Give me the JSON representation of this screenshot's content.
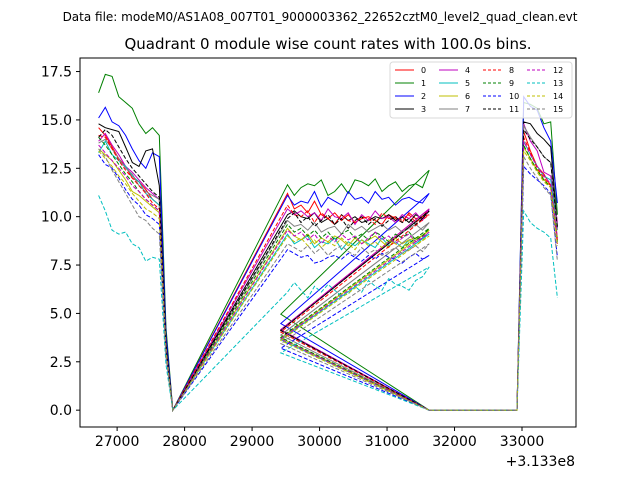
{
  "chart_data": {
    "type": "line",
    "suptitle": "Data file: modeM0/AS1A08_007T01_9000003362_22652cztM0_level2_quad_clean.evt",
    "title": "Quadrant 0 module wise count rates with 100.0s bins.",
    "xlabel": "",
    "ylabel": "",
    "x_offset_label": "+3.133e8",
    "xlim": [
      26450,
      33800
    ],
    "ylim": [
      -0.87,
      18.2
    ],
    "xticks": [
      "27000",
      "28000",
      "29000",
      "30000",
      "31000",
      "32000",
      "33000"
    ],
    "xtick_values": [
      27000,
      28000,
      29000,
      30000,
      31000,
      32000,
      33000
    ],
    "yticks": [
      "0.0",
      "2.5",
      "5.0",
      "7.5",
      "10.0",
      "12.5",
      "15.0",
      "17.5"
    ],
    "ytick_values": [
      0,
      2.5,
      5,
      7.5,
      10,
      12.5,
      15,
      17.5
    ],
    "segments": [
      {
        "start": 26725,
        "n": 10
      },
      {
        "start": 29525,
        "n": 22
      },
      {
        "start": 33025,
        "n": 6
      }
    ],
    "gap_end_times": [
      27725,
      27825,
      29425,
      31625,
      31725,
      32925
    ],
    "series": [
      {
        "name": "0",
        "color": "#ff0000",
        "dash": "solid",
        "values": [
          14.6,
          14.2,
          13.6,
          13.0,
          12.6,
          12.0,
          11.8,
          11.4,
          10.9,
          10.6,
          11.2,
          10.4,
          10.6,
          10.2,
          10.8,
          10.1,
          9.9,
          10.2,
          9.8,
          10.1,
          9.7,
          9.9,
          10.0,
          9.8,
          9.6,
          10.1,
          9.9,
          9.7,
          10.2,
          9.9,
          10.0,
          10.4,
          14.4,
          13.4,
          12.6,
          12.2,
          11.6,
          8.8
        ]
      },
      {
        "name": "1",
        "color": "#008000",
        "dash": "solid",
        "values": [
          16.4,
          17.35,
          17.25,
          16.2,
          15.9,
          15.6,
          14.8,
          14.3,
          14.6,
          14.2,
          11.65,
          11.1,
          11.5,
          11.7,
          11.6,
          11.9,
          11.1,
          11.3,
          11.7,
          11.2,
          11.9,
          11.8,
          11.6,
          11.95,
          11.3,
          11.6,
          11.8,
          11.3,
          11.6,
          11.7,
          11.5,
          12.4,
          15.9,
          15.8,
          15.6,
          14.8,
          14.9,
          10.1
        ]
      },
      {
        "name": "2",
        "color": "#0000ff",
        "dash": "solid",
        "values": [
          15.1,
          15.65,
          14.9,
          14.7,
          14.2,
          13.5,
          12.9,
          12.5,
          13.3,
          13.1,
          11.1,
          10.6,
          10.8,
          10.7,
          11.3,
          10.5,
          11.0,
          10.8,
          10.6,
          11.3,
          10.9,
          11.0,
          10.7,
          11.3,
          10.9,
          11.0,
          10.6,
          10.9,
          11.0,
          10.8,
          10.7,
          11.2,
          16.2,
          15.7,
          15.5,
          14.6,
          13.9,
          10.7
        ]
      },
      {
        "name": "3",
        "color": "#000000",
        "dash": "solid",
        "values": [
          14.8,
          14.6,
          14.5,
          14.4,
          13.6,
          12.8,
          12.6,
          13.4,
          13.5,
          11.6,
          10.1,
          10.3,
          10.0,
          9.9,
          10.2,
          9.7,
          9.9,
          9.6,
          10.1,
          9.8,
          10.0,
          9.7,
          9.8,
          10.0,
          9.9,
          10.1,
          9.8,
          10.0,
          9.7,
          10.1,
          9.9,
          10.3,
          14.9,
          14.8,
          14.3,
          14.0,
          13.6,
          9.5
        ]
      },
      {
        "name": "4",
        "color": "#bf00bf",
        "dash": "solid",
        "values": [
          13.9,
          14.3,
          13.7,
          13.2,
          12.6,
          12.3,
          11.9,
          11.5,
          11.2,
          10.9,
          10.4,
          10.1,
          10.3,
          10.0,
          10.2,
          9.8,
          10.4,
          10.0,
          9.9,
          10.2,
          9.6,
          10.1,
          9.8,
          10.3,
          9.9,
          10.0,
          9.7,
          10.1,
          9.9,
          10.2,
          9.8,
          10.4,
          14.8,
          13.9,
          13.4,
          12.3,
          12.1,
          9.7
        ]
      },
      {
        "name": "5",
        "color": "#00bfbf",
        "dash": "solid",
        "values": [
          13.3,
          13.9,
          13.2,
          12.9,
          12.6,
          12.1,
          11.8,
          11.2,
          10.9,
          10.6,
          9.1,
          8.6,
          8.8,
          9.0,
          8.4,
          8.7,
          8.6,
          8.9,
          8.3,
          8.7,
          8.5,
          8.8,
          8.6,
          8.4,
          8.9,
          8.5,
          8.7,
          8.4,
          8.8,
          8.6,
          8.9,
          9.1,
          13.9,
          13.2,
          12.6,
          12.1,
          11.9,
          9.4
        ]
      },
      {
        "name": "6",
        "color": "#bfbf00",
        "dash": "solid",
        "values": [
          13.5,
          13.2,
          12.9,
          12.4,
          11.9,
          11.3,
          11.1,
          10.8,
          10.5,
          10.2,
          9.4,
          9.0,
          8.8,
          9.1,
          8.6,
          8.9,
          8.7,
          9.0,
          8.8,
          8.5,
          8.9,
          8.6,
          8.8,
          9.0,
          8.7,
          8.4,
          8.9,
          8.6,
          8.8,
          8.9,
          9.0,
          9.3,
          13.6,
          13.0,
          12.4,
          11.9,
          11.6,
          8.9
        ]
      },
      {
        "name": "7",
        "color": "#808080",
        "dash": "solid",
        "values": [
          13.8,
          14.0,
          13.5,
          13.0,
          12.5,
          12.2,
          11.6,
          11.3,
          11.1,
          10.9,
          9.8,
          9.5,
          9.6,
          9.3,
          9.7,
          9.2,
          9.4,
          9.5,
          9.1,
          9.6,
          9.3,
          9.5,
          9.2,
          9.4,
          9.6,
          9.3,
          9.5,
          9.2,
          9.4,
          9.6,
          9.3,
          9.7,
          14.7,
          14.1,
          13.6,
          13.1,
          12.8,
          9.3
        ]
      },
      {
        "name": "8",
        "color": "#ff0000",
        "dash": "dashed",
        "values": [
          14.2,
          14.1,
          13.5,
          12.9,
          12.4,
          12.0,
          11.6,
          11.2,
          10.7,
          10.4,
          10.6,
          10.1,
          10.0,
          10.3,
          9.7,
          10.2,
          9.9,
          9.6,
          10.1,
          9.8,
          9.7,
          10.0,
          9.9,
          9.6,
          10.2,
          9.9,
          10.0,
          9.8,
          10.1,
          9.7,
          10.0,
          10.1,
          14.1,
          13.3,
          12.5,
          12.0,
          11.6,
          8.6
        ]
      },
      {
        "name": "9",
        "color": "#008000",
        "dash": "dashed",
        "values": [
          14.1,
          13.7,
          13.2,
          12.7,
          12.2,
          11.8,
          11.3,
          10.9,
          10.6,
          10.3,
          9.6,
          9.2,
          9.4,
          9.0,
          9.3,
          8.9,
          9.2,
          8.8,
          9.1,
          9.3,
          8.9,
          9.1,
          8.8,
          9.2,
          9.0,
          8.7,
          9.1,
          8.9,
          9.2,
          8.8,
          9.0,
          9.4,
          13.7,
          13.0,
          12.4,
          11.9,
          11.5,
          8.7
        ]
      },
      {
        "name": "10",
        "color": "#0000ff",
        "dash": "dashed",
        "values": [
          13.2,
          12.7,
          12.5,
          12.0,
          11.4,
          10.9,
          10.6,
          10.1,
          9.9,
          9.6,
          8.3,
          8.1,
          7.9,
          8.0,
          7.6,
          7.7,
          7.9,
          8.0,
          7.8,
          8.1,
          7.9,
          7.7,
          8.0,
          7.8,
          8.1,
          7.9,
          7.8,
          7.6,
          7.9,
          8.1,
          7.8,
          8.0,
          12.6,
          12.2,
          11.9,
          11.6,
          11.2,
          7.9
        ]
      },
      {
        "name": "11",
        "color": "#000000",
        "dash": "dashed",
        "values": [
          14.1,
          14.5,
          14.2,
          13.6,
          13.0,
          12.5,
          12.1,
          11.7,
          11.3,
          11.0,
          9.9,
          10.2,
          9.7,
          10.0,
          9.5,
          9.8,
          10.1,
          9.6,
          9.9,
          9.4,
          9.8,
          10.0,
          9.6,
          9.9,
          9.5,
          9.8,
          10.0,
          9.7,
          9.9,
          9.6,
          9.9,
          10.3,
          14.5,
          14.0,
          13.6,
          13.1,
          12.8,
          9.4
        ]
      },
      {
        "name": "12",
        "color": "#bf00bf",
        "dash": "dashed",
        "values": [
          13.7,
          13.3,
          12.9,
          12.5,
          12.1,
          11.6,
          11.3,
          10.9,
          10.6,
          10.3,
          9.3,
          9.0,
          9.2,
          8.8,
          9.1,
          8.6,
          9.0,
          8.7,
          9.1,
          8.8,
          9.0,
          8.6,
          8.9,
          9.2,
          8.8,
          9.0,
          8.6,
          8.9,
          9.1,
          8.7,
          8.9,
          9.2,
          13.9,
          13.2,
          12.6,
          12.1,
          11.7,
          8.9
        ]
      },
      {
        "name": "13",
        "color": "#00bfbf",
        "dash": "dashed",
        "values": [
          11.1,
          10.3,
          9.3,
          9.1,
          9.2,
          8.6,
          8.4,
          7.7,
          7.9,
          7.8,
          6.1,
          6.6,
          6.2,
          5.8,
          6.4,
          6.1,
          6.5,
          6.2,
          5.9,
          6.0,
          6.4,
          6.1,
          6.7,
          6.4,
          6.2,
          6.8,
          6.5,
          6.4,
          6.2,
          6.7,
          6.9,
          7.4,
          10.3,
          9.7,
          9.4,
          9.2,
          8.9,
          5.8
        ]
      },
      {
        "name": "14",
        "color": "#bfbf00",
        "dash": "dashed",
        "values": [
          13.4,
          13.0,
          12.6,
          12.1,
          11.7,
          11.2,
          10.8,
          10.4,
          10.2,
          9.9,
          9.0,
          8.7,
          8.9,
          8.5,
          8.8,
          8.4,
          8.7,
          8.5,
          8.9,
          8.6,
          8.3,
          8.8,
          8.5,
          8.7,
          8.4,
          8.8,
          8.6,
          8.4,
          8.7,
          8.5,
          8.8,
          9.0,
          13.4,
          12.9,
          12.3,
          11.8,
          11.5,
          8.5
        ]
      },
      {
        "name": "15",
        "color": "#808080",
        "dash": "dashed",
        "values": [
          13.5,
          13.1,
          12.4,
          11.8,
          11.2,
          10.6,
          10.0,
          9.8,
          9.4,
          9.1,
          8.6,
          8.4,
          8.2,
          8.5,
          8.1,
          8.4,
          8.0,
          8.3,
          8.5,
          8.2,
          8.0,
          8.4,
          8.1,
          8.3,
          8.0,
          8.2,
          8.4,
          8.1,
          8.3,
          8.5,
          8.2,
          8.6,
          13.1,
          12.5,
          12.0,
          11.5,
          11.1,
          7.7
        ]
      }
    ]
  }
}
